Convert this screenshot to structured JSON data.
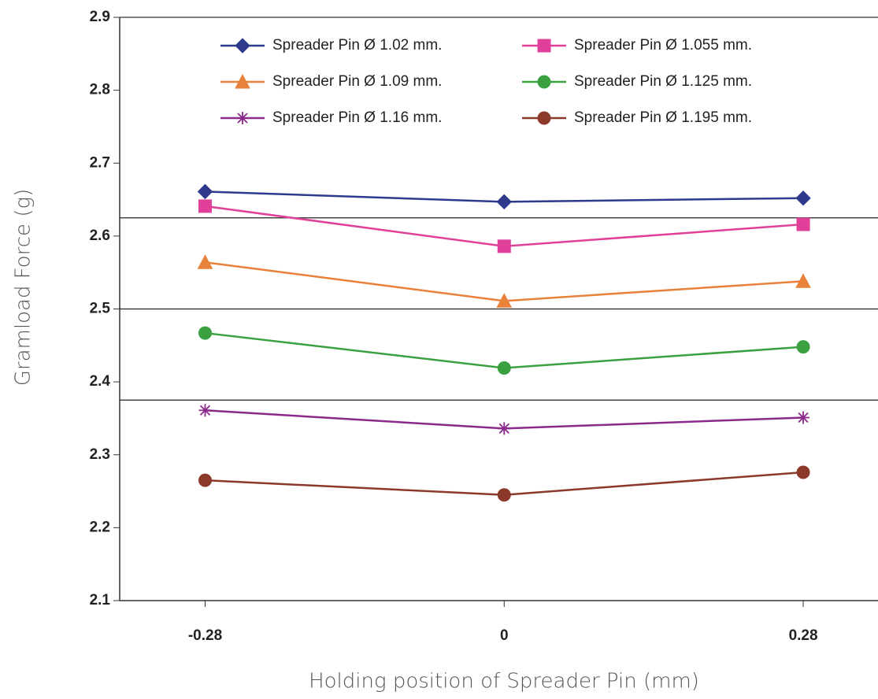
{
  "chart_data": {
    "type": "line",
    "x_label": "Holding position of Spreader Pin (mm)",
    "y_label": "Gramload Force (g)",
    "x": [
      -0.28,
      0,
      0.28
    ],
    "xlim": [
      -0.36,
      0.35
    ],
    "xticks": [
      -0.28,
      0,
      0.28
    ],
    "ylim": [
      2.1,
      2.9
    ],
    "yticks": [
      2.1,
      2.2,
      2.3,
      2.4,
      2.5,
      2.6,
      2.7,
      2.8,
      2.9
    ],
    "hlines": [
      2.625,
      2.5,
      2.375
    ],
    "series": [
      {
        "name": "Spreader Pin Ø 1.02 mm.",
        "color": "#2e3a8c",
        "marker": "diamond",
        "values": [
          2.661,
          2.647,
          2.652
        ]
      },
      {
        "name": "Spreader Pin Ø 1.055 mm.",
        "color": "#e0409a",
        "marker": "square",
        "values": [
          2.641,
          2.586,
          2.616
        ]
      },
      {
        "name": "Spreader Pin Ø 1.09 mm.",
        "color": "#e8813a",
        "marker": "triangle",
        "values": [
          2.564,
          2.511,
          2.538
        ]
      },
      {
        "name": "Spreader Pin Ø 1.125 mm.",
        "color": "#3aa040",
        "marker": "circle",
        "values": [
          2.467,
          2.419,
          2.448
        ]
      },
      {
        "name": "Spreader Pin Ø 1.16 mm.",
        "color": "#8b2a8b",
        "marker": "star",
        "values": [
          2.361,
          2.336,
          2.351
        ]
      },
      {
        "name": "Spreader Pin Ø 1.195 mm.",
        "color": "#8b3a2a",
        "marker": "circle",
        "values": [
          2.265,
          2.245,
          2.276
        ]
      }
    ]
  }
}
